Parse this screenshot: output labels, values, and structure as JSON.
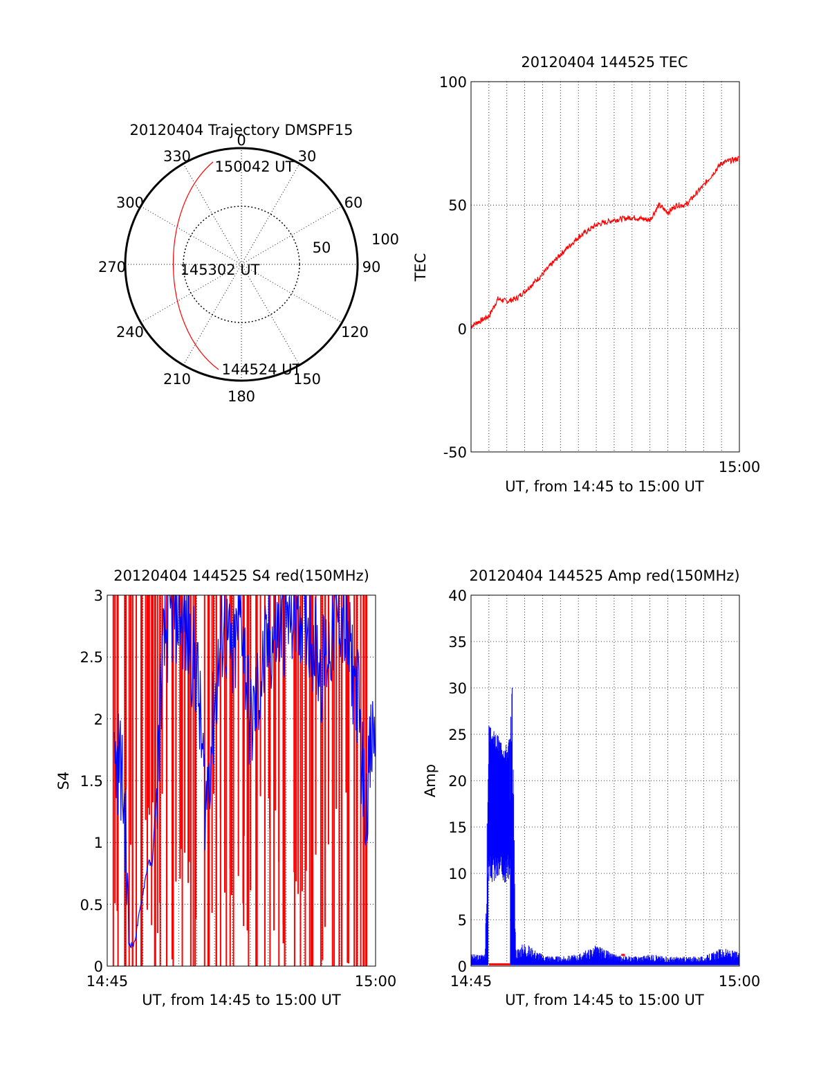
{
  "polar": {
    "title": "20120404 Trajectory DMSPF15",
    "azimuth_labels": [
      "0",
      "30",
      "60",
      "90",
      "120",
      "150",
      "180",
      "210",
      "240",
      "270",
      "300",
      "330"
    ],
    "ring_labels": [
      "50",
      "100"
    ],
    "time_labels": [
      "150042 UT",
      "145302 UT",
      "144524 UT"
    ],
    "trajectory_color": "#ff0000",
    "chart_data": {
      "type": "line",
      "projection": "polar",
      "series": [
        {
          "points": [
            {
              "time": "144524 UT",
              "azimuth": 202,
              "elevation": 12
            },
            {
              "time": "145302 UT",
              "azimuth": 270,
              "elevation": 48
            },
            {
              "time": "150042 UT",
              "azimuth": 335,
              "elevation": 14
            }
          ]
        }
      ]
    }
  },
  "tec": {
    "title": "20120404 144525 TEC",
    "xlabel": "UT, from 14:45 to 15:00 UT",
    "ylabel": "TEC",
    "x_end_label": "15:00",
    "y_ticks": [
      "-50",
      "0",
      "50",
      "100"
    ],
    "color": "#ff0000",
    "chart_data": {
      "type": "line",
      "xlim": [
        0,
        15
      ],
      "ylim": [
        -50,
        100
      ],
      "x_unit": "minutes after 14:45 UT",
      "grid": true,
      "series": [
        {
          "color": "#ff0000",
          "x": [
            0,
            1,
            1.5,
            2,
            2.5,
            3,
            4,
            5,
            6,
            7,
            8,
            9,
            10,
            10.5,
            11,
            11.5,
            12,
            13,
            14,
            15
          ],
          "y": [
            1,
            5,
            12,
            11,
            12,
            15,
            22,
            30,
            37,
            42,
            44,
            45,
            44,
            50,
            47,
            50,
            50,
            58,
            67,
            69
          ]
        }
      ]
    }
  },
  "s4": {
    "title": "20120404 144525 S4 red(150MHz)",
    "xlabel": "UT, from 14:45 to 15:00 UT",
    "ylabel": "S4",
    "x_start_label": "14:45",
    "x_end_label": "15:00",
    "y_ticks": [
      "0",
      "0.5",
      "1",
      "1.5",
      "2",
      "2.5",
      "3"
    ],
    "red_color": "#ff0000",
    "blue_color": "#0000ff",
    "chart_data": {
      "type": "line",
      "xlim": [
        0,
        15
      ],
      "ylim": [
        0,
        3
      ],
      "x_unit": "minutes after 14:45 UT",
      "grid": true,
      "series": [
        {
          "color": "#0000ff",
          "x": [
            0.4,
            0.7,
            1,
            1.2,
            1.5,
            2.3,
            2.5,
            2.8,
            3,
            3.2,
            3.5,
            4,
            5,
            5.5,
            6,
            6.5,
            7,
            7.5,
            8,
            9,
            10,
            11,
            12,
            13,
            14,
            14.4,
            15
          ],
          "y": [
            1.6,
            1.7,
            1.2,
            0.18,
            0.17,
            0.85,
            0.8,
            1.5,
            2.3,
            2.6,
            2.8,
            2.9,
            2.4,
            1.3,
            2.1,
            2.8,
            2.4,
            2.9,
            1.9,
            2.6,
            2.8,
            2.9,
            2.4,
            2.9,
            2.2,
            1.3,
            2.0
          ]
        },
        {
          "color": "#ff0000",
          "style": "spikes 0-3",
          "x": [
            0.5,
            1,
            1.3,
            1.8,
            2.2,
            2.6,
            3,
            3.5,
            4,
            4.5,
            5,
            5.5,
            6,
            6.5,
            7,
            7.5,
            8,
            8.5,
            9,
            9.5,
            10,
            10.5,
            11,
            11.5,
            12,
            12.5,
            13,
            13.5,
            14,
            14.4
          ],
          "y": [
            3,
            3,
            3,
            3,
            3,
            3,
            3,
            3,
            3,
            3,
            3,
            3,
            3,
            3,
            3,
            3,
            3,
            3,
            3,
            3,
            3,
            3,
            3,
            3,
            3,
            3,
            3,
            3,
            3,
            3
          ]
        }
      ]
    }
  },
  "amp": {
    "title": "20120404 144525 Amp red(150MHz)",
    "xlabel": "UT, from 14:45 to 15:00 UT",
    "ylabel": "Amp",
    "x_start_label": "14:45",
    "x_end_label": "15:00",
    "y_ticks": [
      "0",
      "5",
      "10",
      "15",
      "20",
      "25",
      "30",
      "35",
      "40"
    ],
    "red_color": "#ff0000",
    "blue_color": "#0000ff",
    "chart_data": {
      "type": "line",
      "xlim": [
        0,
        15
      ],
      "ylim": [
        0,
        40
      ],
      "x_unit": "minutes after 14:45 UT",
      "grid": true,
      "series": [
        {
          "color": "#0000ff",
          "x": [
            0,
            0.5,
            0.8,
            1,
            1.5,
            2,
            2.3,
            2.5,
            3,
            4,
            5,
            6,
            7,
            8,
            9,
            10,
            11,
            12,
            13,
            14,
            15
          ],
          "y": [
            1,
            1,
            1.5,
            24,
            23,
            22,
            24,
            1.5,
            2,
            1,
            0.8,
            1,
            1.8,
            1,
            0.8,
            1,
            0.8,
            0.8,
            0.8,
            1.5,
            1.2
          ]
        },
        {
          "color": "#ff0000",
          "x": [
            1,
            2.2,
            8.4,
            8.6
          ],
          "y": [
            0.2,
            0.2,
            1.2,
            1.2
          ]
        }
      ]
    }
  }
}
